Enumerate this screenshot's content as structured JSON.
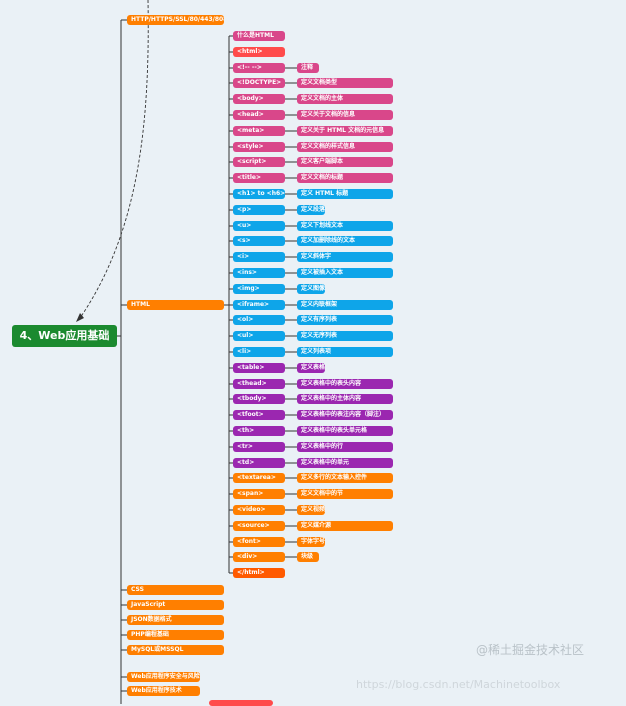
{
  "root": "4、Web应用基础",
  "colors": {
    "orange": "#ff7f00",
    "pink": "#d9478a",
    "red": "#ff4b4b",
    "blue": "#0ea5e9",
    "purple": "#9b27b0",
    "deep_orange": "#ff5a00",
    "green": "#1b8a2f",
    "line": "#333333"
  },
  "level1": [
    {
      "label": "HTTP/HTTPS/SSL/80/443/8080",
      "color": "orange"
    },
    {
      "label": "HTML",
      "color": "orange"
    },
    {
      "label": "CSS",
      "color": "orange"
    },
    {
      "label": "JavaScript",
      "color": "orange"
    },
    {
      "label": "JSON数据格式",
      "color": "orange"
    },
    {
      "label": "PHP编程基础",
      "color": "orange"
    },
    {
      "label": "MySQL或MSSQL",
      "color": "orange"
    }
  ],
  "level1_bottom": [
    {
      "label": "Web应用程序安全与风险",
      "color": "orange"
    },
    {
      "label": "Web应用程序技术",
      "color": "orange"
    }
  ],
  "html_children": [
    {
      "tag": "什么是HTML",
      "desc": "",
      "color": "pink"
    },
    {
      "tag": "<html>",
      "desc": "",
      "color": "red"
    },
    {
      "tag": "<!-- -->",
      "desc": "注释",
      "color": "pink"
    },
    {
      "tag": "<!DOCTYPE>",
      "desc": "定义文档类型",
      "color": "pink"
    },
    {
      "tag": "<body>",
      "desc": "定义文档的主体",
      "color": "pink"
    },
    {
      "tag": "<head>",
      "desc": "定义关于文档的信息",
      "color": "pink"
    },
    {
      "tag": "<meta>",
      "desc": "定义关于 HTML 文档的元信息",
      "color": "pink"
    },
    {
      "tag": "<style>",
      "desc": "定义文档的样式信息",
      "color": "pink"
    },
    {
      "tag": "<script>",
      "desc": "定义客户端脚本",
      "color": "pink"
    },
    {
      "tag": "<title>",
      "desc": "定义文档的标题",
      "color": "pink"
    },
    {
      "tag": "<h1> to <h6>",
      "desc": "定义 HTML 标题",
      "color": "blue"
    },
    {
      "tag": "<p>",
      "desc": "定义段落",
      "color": "blue"
    },
    {
      "tag": "<u>",
      "desc": "定义下划线文本",
      "color": "blue"
    },
    {
      "tag": "<s>",
      "desc": "定义加删除线的文本",
      "color": "blue"
    },
    {
      "tag": "<i>",
      "desc": "定义斜体字",
      "color": "blue"
    },
    {
      "tag": "<ins>",
      "desc": "定义被插入文本",
      "color": "blue"
    },
    {
      "tag": "<img>",
      "desc": "定义图像",
      "color": "blue"
    },
    {
      "tag": "<iframe>",
      "desc": "定义内联框架",
      "color": "blue"
    },
    {
      "tag": "<ol>",
      "desc": "定义有序列表",
      "color": "blue"
    },
    {
      "tag": "<ul>",
      "desc": "定义无序列表",
      "color": "blue"
    },
    {
      "tag": "<li>",
      "desc": "定义列表项",
      "color": "blue"
    },
    {
      "tag": "<table>",
      "desc": "定义表格",
      "color": "purple"
    },
    {
      "tag": "<thead>",
      "desc": "定义表格中的表头内容",
      "color": "purple"
    },
    {
      "tag": "<tbody>",
      "desc": "定义表格中的主体内容",
      "color": "purple"
    },
    {
      "tag": "<tfoot>",
      "desc": "定义表格中的表注内容（脚注）",
      "color": "purple"
    },
    {
      "tag": "<th>",
      "desc": "定义表格中的表头单元格",
      "color": "purple"
    },
    {
      "tag": "<tr>",
      "desc": "定义表格中的行",
      "color": "purple"
    },
    {
      "tag": "<td>",
      "desc": "定义表格中的单元",
      "color": "purple"
    },
    {
      "tag": "<textarea>",
      "desc": "定义多行的文本输入控件",
      "color": "orange"
    },
    {
      "tag": "<span>",
      "desc": "定义文档中的节",
      "color": "orange"
    },
    {
      "tag": "<video>",
      "desc": "定义视频",
      "color": "orange"
    },
    {
      "tag": "<source>",
      "desc": "定义媒介源",
      "color": "orange"
    },
    {
      "tag": "<font>",
      "desc": "字体字号",
      "color": "orange"
    },
    {
      "tag": "<div>",
      "desc": "块级",
      "color": "orange"
    },
    {
      "tag": "</html>",
      "desc": "",
      "color": "deep_orange"
    }
  ],
  "watermark_main": "@稀土掘金技术社区",
  "watermark_url": "https://blog.csdn.net/Machinetoolbox"
}
